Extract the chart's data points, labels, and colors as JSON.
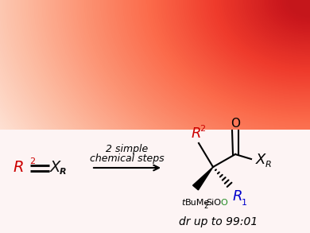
{
  "white_box_color": "#fdf4f4",
  "reactant_R2_color": "#cc0000",
  "product_R2_color": "#cc0000",
  "product_R1_color": "#0000cc",
  "product_O_color": "#228B22",
  "arrow_label_line1": "2 simple",
  "arrow_label_line2": "chemical steps",
  "dr_text": "dr up to 99:01"
}
